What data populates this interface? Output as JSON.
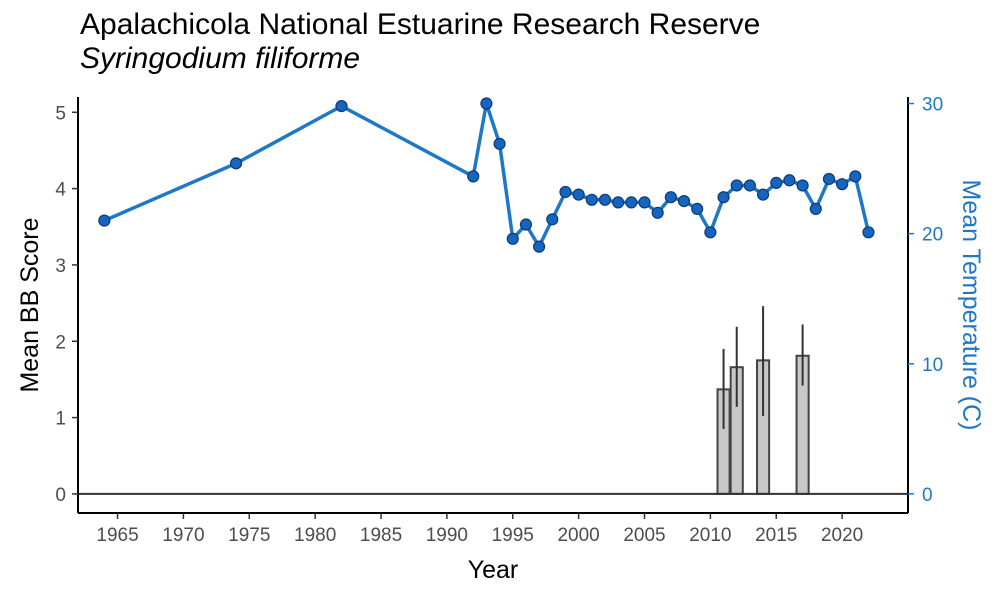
{
  "title": "Apalachicola National Estuarine Research Reserve",
  "subtitle": "Syringodium filiforme",
  "chart_data": {
    "type": "bar+line",
    "xlabel": "Year",
    "ylabel": "Mean BB Score",
    "ylabel_right": "Mean Temperature (C)",
    "xlim": [
      1962,
      2025
    ],
    "xticks": [
      1965,
      1970,
      1975,
      1980,
      1985,
      1990,
      1995,
      2000,
      2005,
      2010,
      2015,
      2020
    ],
    "ylim": [
      0,
      5.2
    ],
    "yticks": [
      0,
      1,
      2,
      3,
      4,
      5
    ],
    "ylim_right": [
      0,
      30.5
    ],
    "yticks_right": [
      0,
      10,
      20,
      30
    ],
    "grid": false,
    "colors": {
      "line": "#1f77c8",
      "point": "#1565c0",
      "bar_fill": "#c8c8c8",
      "bar_stroke": "#444444",
      "right_axis": "#1f77c8"
    },
    "bars": [
      {
        "x": 2011,
        "value": 1.37,
        "err_low": 0.85,
        "err_high": 1.9
      },
      {
        "x": 2012,
        "value": 1.66,
        "err_low": 1.14,
        "err_high": 2.19
      },
      {
        "x": 2014,
        "value": 1.75,
        "err_low": 1.02,
        "err_high": 2.46
      },
      {
        "x": 2017,
        "value": 1.81,
        "err_low": 1.42,
        "err_high": 2.22
      }
    ],
    "temperature_series": {
      "x": [
        1964,
        1974,
        1982,
        1992,
        1993,
        1994,
        1995,
        1996,
        1997,
        1998,
        1999,
        2000,
        2001,
        2002,
        2003,
        2004,
        2005,
        2006,
        2007,
        2008,
        2009,
        2010,
        2011,
        2012,
        2013,
        2014,
        2015,
        2016,
        2017,
        2018,
        2019,
        2020,
        2021,
        2022
      ],
      "y": [
        21.0,
        25.4,
        29.8,
        24.4,
        30.0,
        26.9,
        19.6,
        20.7,
        19.0,
        21.1,
        23.2,
        23.0,
        22.6,
        22.6,
        22.4,
        22.4,
        22.4,
        21.6,
        22.8,
        22.5,
        21.9,
        20.1,
        22.8,
        23.7,
        23.7,
        23.0,
        23.9,
        24.1,
        23.7,
        21.9,
        24.2,
        23.8,
        24.4,
        20.1
      ]
    }
  }
}
